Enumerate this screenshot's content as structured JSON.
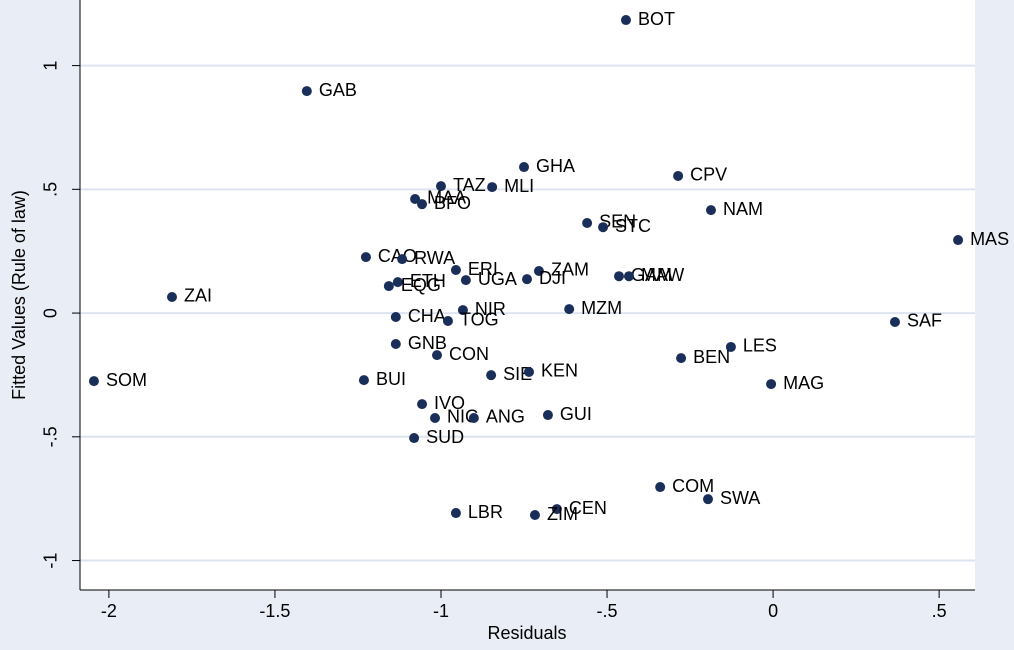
{
  "chart_data": {
    "type": "scatter",
    "x_label": "Residuals",
    "y_label": "Fitted Values (Rule of law)",
    "color": "#1a2e5a",
    "grid": true,
    "xlim": [
      -2.087,
      0.608
    ],
    "ylim": [
      -1.119,
      1.265
    ],
    "xticks": [
      -2,
      {
        "value": -1.5,
        "label": "-1.5"
      },
      -1,
      {
        "value": -0.5,
        "label": "-.5"
      },
      0,
      {
        "value": 0.5,
        "label": ".5"
      }
    ],
    "yticks": [
      1,
      {
        "value": 0.5,
        "label": ".5"
      },
      0,
      {
        "value": -0.5,
        "label": "-.5"
      },
      -1
    ],
    "labels": [
      "BOT",
      "GAB",
      "GHA",
      "CPV",
      "TAZ",
      "MLI",
      "MAA",
      "BFO",
      "NAM",
      "SEN",
      "STC",
      "MAS",
      "CAO",
      "RWA",
      "ERI",
      "ZAM",
      "GAM",
      "MAW",
      "UGA",
      "DJI",
      "ETH",
      "EQG",
      "ZAI",
      "NIR",
      "MZM",
      "CHA",
      "TOG",
      "SAF",
      "LES",
      "GNB",
      "CON",
      "BEN",
      "SOM",
      "BUI",
      "SIE",
      "KEN",
      "MAG",
      "IVO",
      "NIG",
      "ANG",
      "GUI",
      "SUD",
      "COM",
      "SWA",
      "CEN",
      "LBR",
      "ZIM"
    ],
    "x": [
      -0.443,
      -1.404,
      -0.75,
      -0.286,
      -1.0,
      -0.846,
      -1.078,
      -1.057,
      -0.187,
      -0.56,
      -0.512,
      0.557,
      -1.226,
      -1.117,
      -0.955,
      -0.705,
      -0.464,
      -0.434,
      -0.925,
      -0.741,
      -1.13,
      -1.157,
      -1.81,
      -0.934,
      -0.614,
      -1.136,
      -0.979,
      0.367,
      -0.127,
      -1.136,
      -1.012,
      -0.277,
      -2.045,
      -1.232,
      -0.849,
      -0.735,
      -0.006,
      -1.057,
      -1.018,
      -0.901,
      -0.678,
      -1.081,
      -0.34,
      -0.196,
      -0.651,
      -0.955,
      -0.717
    ],
    "y": [
      1.184,
      0.897,
      0.59,
      0.554,
      0.513,
      0.509,
      0.461,
      0.44,
      0.416,
      0.364,
      0.347,
      0.295,
      0.226,
      0.218,
      0.174,
      0.17,
      0.149,
      0.149,
      0.133,
      0.137,
      0.125,
      0.109,
      0.065,
      0.012,
      0.016,
      -0.016,
      -0.032,
      -0.036,
      -0.137,
      -0.125,
      -0.17,
      -0.182,
      -0.275,
      -0.271,
      -0.251,
      -0.238,
      -0.287,
      -0.368,
      -0.424,
      -0.424,
      -0.412,
      -0.505,
      -0.703,
      -0.752,
      -0.792,
      -0.808,
      -0.816
    ]
  }
}
